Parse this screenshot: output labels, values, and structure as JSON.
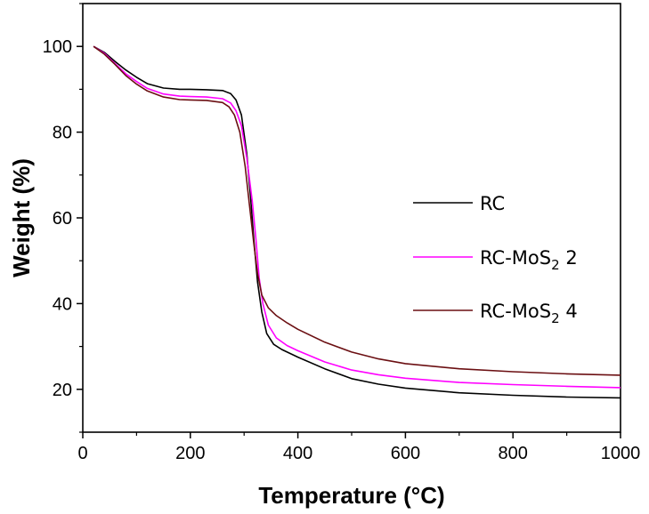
{
  "chart_data": {
    "type": "line",
    "xlabel": "Temperature (°C)",
    "ylabel": "Weight (%)",
    "xlim": [
      0,
      1000
    ],
    "ylim": [
      10,
      110
    ],
    "xticks": [
      0,
      200,
      400,
      600,
      800,
      1000
    ],
    "yticks": [
      20,
      40,
      60,
      80,
      100
    ],
    "legend_position": "center-right",
    "series": [
      {
        "name": "RC",
        "legend_main": "RC",
        "legend_sub": "",
        "legend_suffix": "",
        "color": "#000000",
        "points": [
          [
            20,
            100
          ],
          [
            40,
            98.6
          ],
          [
            60,
            96.5
          ],
          [
            80,
            94.5
          ],
          [
            100,
            92.8
          ],
          [
            120,
            91.3
          ],
          [
            150,
            90.3
          ],
          [
            180,
            90.0
          ],
          [
            200,
            90.0
          ],
          [
            230,
            89.9
          ],
          [
            260,
            89.7
          ],
          [
            275,
            89.0
          ],
          [
            285,
            87.5
          ],
          [
            295,
            84.0
          ],
          [
            305,
            75.0
          ],
          [
            312,
            65.0
          ],
          [
            318,
            55.0
          ],
          [
            325,
            45.0
          ],
          [
            333,
            38.0
          ],
          [
            342,
            33.0
          ],
          [
            355,
            30.5
          ],
          [
            370,
            29.3
          ],
          [
            400,
            27.5
          ],
          [
            450,
            24.8
          ],
          [
            500,
            22.5
          ],
          [
            550,
            21.2
          ],
          [
            600,
            20.3
          ],
          [
            700,
            19.2
          ],
          [
            800,
            18.6
          ],
          [
            900,
            18.2
          ],
          [
            1000,
            18.0
          ]
        ]
      },
      {
        "name": "RC-MoS2 2",
        "legend_main": "RC-MoS",
        "legend_sub": "2",
        "legend_suffix": " 2",
        "color": "#ff00ff",
        "points": [
          [
            20,
            100
          ],
          [
            40,
            98.4
          ],
          [
            60,
            96.0
          ],
          [
            80,
            93.6
          ],
          [
            100,
            91.8
          ],
          [
            120,
            90.2
          ],
          [
            150,
            88.9
          ],
          [
            180,
            88.4
          ],
          [
            200,
            88.3
          ],
          [
            230,
            88.2
          ],
          [
            260,
            87.8
          ],
          [
            275,
            86.8
          ],
          [
            285,
            85.0
          ],
          [
            295,
            81.5
          ],
          [
            305,
            74.0
          ],
          [
            315,
            64.0
          ],
          [
            322,
            55.0
          ],
          [
            328,
            46.0
          ],
          [
            335,
            40.0
          ],
          [
            345,
            35.0
          ],
          [
            360,
            32.0
          ],
          [
            380,
            30.2
          ],
          [
            400,
            29.0
          ],
          [
            450,
            26.4
          ],
          [
            500,
            24.5
          ],
          [
            550,
            23.4
          ],
          [
            600,
            22.6
          ],
          [
            700,
            21.6
          ],
          [
            800,
            21.1
          ],
          [
            900,
            20.7
          ],
          [
            1000,
            20.4
          ]
        ]
      },
      {
        "name": "RC-MoS2 4",
        "legend_main": "RC-MoS",
        "legend_sub": "2",
        "legend_suffix": " 4",
        "color": "#6b0f12",
        "points": [
          [
            20,
            100
          ],
          [
            40,
            98.2
          ],
          [
            60,
            95.8
          ],
          [
            80,
            93.2
          ],
          [
            100,
            91.2
          ],
          [
            120,
            89.6
          ],
          [
            150,
            88.2
          ],
          [
            180,
            87.6
          ],
          [
            200,
            87.5
          ],
          [
            230,
            87.4
          ],
          [
            260,
            86.9
          ],
          [
            272,
            85.9
          ],
          [
            282,
            84.0
          ],
          [
            292,
            80.0
          ],
          [
            302,
            72.0
          ],
          [
            310,
            63.0
          ],
          [
            318,
            54.0
          ],
          [
            325,
            47.0
          ],
          [
            333,
            42.0
          ],
          [
            345,
            39.0
          ],
          [
            360,
            37.2
          ],
          [
            380,
            35.5
          ],
          [
            400,
            34.0
          ],
          [
            450,
            31.0
          ],
          [
            500,
            28.7
          ],
          [
            550,
            27.1
          ],
          [
            600,
            26.0
          ],
          [
            700,
            24.8
          ],
          [
            800,
            24.1
          ],
          [
            900,
            23.6
          ],
          [
            1000,
            23.3
          ]
        ]
      }
    ]
  }
}
